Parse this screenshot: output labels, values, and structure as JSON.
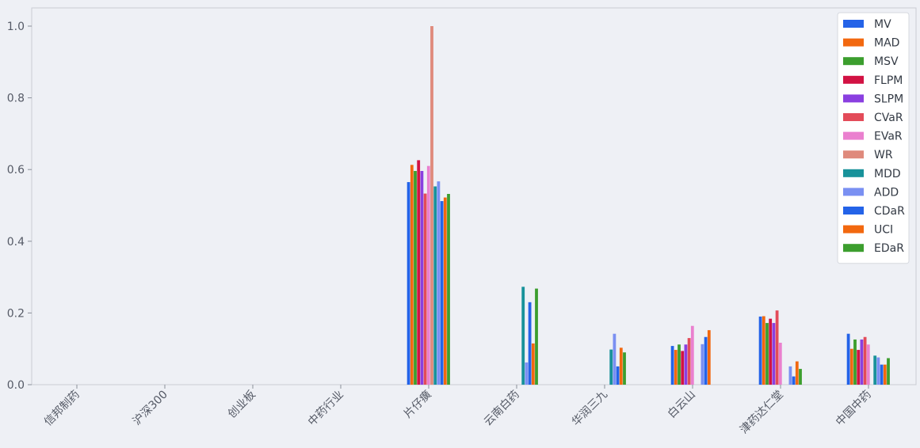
{
  "chart_data": {
    "type": "bar",
    "title": "",
    "xlabel": "",
    "ylabel": "",
    "ylim": [
      0,
      1.0
    ],
    "yticks": [
      "0.0",
      "0.2",
      "0.4",
      "0.6",
      "0.8",
      "1.0"
    ],
    "grid": false,
    "legend_position": "top-right",
    "categories": [
      "信邦制药",
      "沪深300",
      "创业板",
      "中药行业",
      "片仔癀",
      "云南白药",
      "华润三九",
      "白云山",
      "津药达仁堂",
      "中国中药"
    ],
    "series": [
      {
        "name": "MV",
        "color": "#2463e8",
        "values": [
          0,
          0,
          0,
          0,
          0.565,
          0.0,
          0.0,
          0.108,
          0.19,
          0.142
        ]
      },
      {
        "name": "MAD",
        "color": "#f2680f",
        "values": [
          0,
          0,
          0,
          0,
          0.613,
          0.0,
          0.0,
          0.097,
          0.191,
          0.1
        ]
      },
      {
        "name": "MSV",
        "color": "#3c9e2e",
        "values": [
          0,
          0,
          0,
          0,
          0.596,
          0.0,
          0.0,
          0.112,
          0.172,
          0.126
        ]
      },
      {
        "name": "FLPM",
        "color": "#d21243",
        "values": [
          0,
          0,
          0,
          0,
          0.626,
          0.0,
          0.0,
          0.094,
          0.184,
          0.097
        ]
      },
      {
        "name": "SLPM",
        "color": "#8a3fe0",
        "values": [
          0,
          0,
          0,
          0,
          0.596,
          0.0,
          0.0,
          0.112,
          0.172,
          0.126
        ]
      },
      {
        "name": "CVaR",
        "color": "#e34b59",
        "values": [
          0,
          0,
          0,
          0,
          0.533,
          0.0,
          0.0,
          0.13,
          0.207,
          0.133
        ]
      },
      {
        "name": "EVaR",
        "color": "#ea80cf",
        "values": [
          0,
          0,
          0,
          0,
          0.61,
          0.0,
          0.0,
          0.164,
          0.117,
          0.112
        ]
      },
      {
        "name": "WR",
        "color": "#df8a7c",
        "values": [
          0,
          0,
          0,
          0,
          1.0,
          0.0,
          0.0,
          0.0,
          0.0,
          0.0
        ]
      },
      {
        "name": "MDD",
        "color": "#18929a",
        "values": [
          0,
          0,
          0,
          0,
          0.553,
          0.273,
          0.098,
          0.0,
          0.0,
          0.081
        ]
      },
      {
        "name": "ADD",
        "color": "#7a90f2",
        "values": [
          0,
          0,
          0,
          0,
          0.567,
          0.062,
          0.142,
          0.113,
          0.051,
          0.076
        ]
      },
      {
        "name": "CDaR",
        "color": "#2463e8",
        "values": [
          0,
          0,
          0,
          0,
          0.512,
          0.23,
          0.051,
          0.133,
          0.023,
          0.056
        ]
      },
      {
        "name": "UCI",
        "color": "#f2680f",
        "values": [
          0,
          0,
          0,
          0,
          0.522,
          0.115,
          0.103,
          0.152,
          0.065,
          0.056
        ]
      },
      {
        "name": "EDaR",
        "color": "#3c9e2e",
        "values": [
          0,
          0,
          0,
          0,
          0.532,
          0.268,
          0.09,
          0.0,
          0.044,
          0.074
        ]
      }
    ]
  }
}
